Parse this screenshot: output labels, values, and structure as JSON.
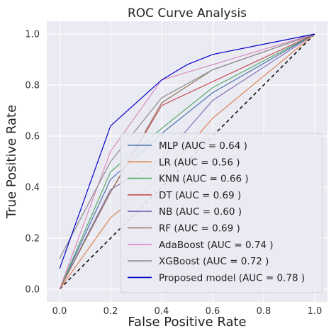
{
  "chart_data": {
    "type": "line",
    "title": "ROC Curve Analysis",
    "xlabel": "False Positive Rate",
    "ylabel": "True Positive Rate",
    "xlim": [
      -0.05,
      1.05
    ],
    "ylim": [
      -0.05,
      1.05
    ],
    "xticks": [
      "0.0",
      "0.2",
      "0.4",
      "0.6",
      "0.8",
      "1.0"
    ],
    "yticks": [
      "0.0",
      "0.2",
      "0.4",
      "0.6",
      "0.8",
      "1.0"
    ],
    "grid": true,
    "background": "#eaeaf2",
    "legend_position": "lower-right",
    "diagonal": {
      "x": [
        0,
        1
      ],
      "y": [
        0,
        1
      ],
      "style": "dashed",
      "color": "#000000"
    },
    "series": [
      {
        "name": "MLP (AUC = 0.64 )",
        "color": "#4c72b0",
        "x": [
          0,
          0.2,
          0.4,
          0.6,
          1
        ],
        "y": [
          0,
          0.43,
          0.61,
          0.77,
          1
        ]
      },
      {
        "name": "LR (AUC = 0.56 )",
        "color": "#dd8452",
        "x": [
          0,
          0.2,
          0.4,
          0.6,
          1
        ],
        "y": [
          0,
          0.28,
          0.44,
          0.67,
          1
        ]
      },
      {
        "name": "KNN (AUC = 0.66 )",
        "color": "#55a868",
        "x": [
          0,
          0.2,
          0.4,
          0.6,
          1
        ],
        "y": [
          0,
          0.46,
          0.63,
          0.79,
          1
        ]
      },
      {
        "name": "DT (AUC = 0.69 )",
        "color": "#c44e52",
        "x": [
          0,
          0.2,
          0.4,
          1
        ],
        "y": [
          0,
          0.38,
          0.72,
          1
        ]
      },
      {
        "name": "NB (AUC = 0.60 )",
        "color": "#8172b3",
        "x": [
          0,
          0.2,
          0.4,
          0.6,
          1
        ],
        "y": [
          0,
          0.39,
          0.51,
          0.74,
          1
        ]
      },
      {
        "name": "RF (AUC = 0.69 )",
        "color": "#937860",
        "x": [
          0,
          0.2,
          0.4,
          0.6,
          1
        ],
        "y": [
          0,
          0.38,
          0.73,
          0.86,
          1
        ]
      },
      {
        "name": "AdaBoost (AUC = 0.74 )",
        "color": "#da8bc3",
        "x": [
          0,
          0.2,
          0.4,
          0.6,
          1
        ],
        "y": [
          0,
          0.54,
          0.82,
          0.88,
          1
        ]
      },
      {
        "name": "XGBoost (AUC = 0.72 )",
        "color": "#8c8c8c",
        "x": [
          0,
          0.2,
          0.4,
          0.6,
          1
        ],
        "y": [
          0.12,
          0.5,
          0.75,
          0.86,
          1
        ]
      },
      {
        "name": "Proposed model (AUC = 0.78 )",
        "color": "#0000cc",
        "x": [
          0,
          0.2,
          0.4,
          0.5,
          0.6,
          1
        ],
        "y": [
          0.08,
          0.64,
          0.82,
          0.88,
          0.92,
          1
        ]
      }
    ]
  }
}
